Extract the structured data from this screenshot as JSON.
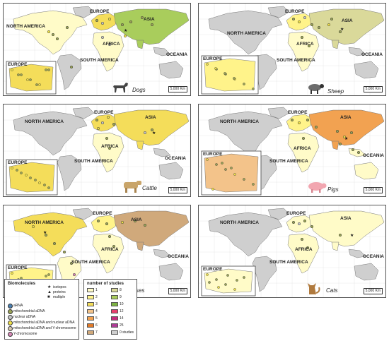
{
  "colors": {
    "ocean": "#ffffff",
    "land_none": "#cfcfcf",
    "c1": "#fffbc8",
    "c2": "#fff38a",
    "c3": "#f4dd5a",
    "c4": "#f3c38a",
    "c5": "#f2a251",
    "c6": "#e07a2a",
    "c7": "#d0a97b",
    "c8": "#dad99a",
    "c9": "#a9cd5c",
    "c10": "#7cb342",
    "c12": "#e8406e",
    "c14": "#c52c7e",
    "c25": "#ad3d96",
    "ancient_rna": "#4a7fb0",
    "mito": "#9aa356",
    "nuclear": "#c6c6c6",
    "mito_nuclear": "#f0e14a",
    "mito_y": "#d7c9b1",
    "ychrom": "#d88ab8"
  },
  "panels": [
    {
      "animal": "Dogs",
      "labels": {
        "north_america": "NORTH AMERICA",
        "europe": "EUROPE",
        "asia": "ASIA",
        "africa": "AFRICA",
        "south_america": "SOUTH AMERICA",
        "oceania": "OCEANIA",
        "inset_europe": "EUROPE"
      },
      "scale": "5,000 Km",
      "icon": "dog-icon"
    },
    {
      "animal": "Sheep",
      "labels": {
        "north_america": "NORTH AMERICA",
        "europe": "EUROPE",
        "asia": "ASIA",
        "africa": "AFRICA",
        "south_america": "SOUTH AMERICA",
        "oceania": "OCEANIA",
        "inset_europe": "EUROPE"
      },
      "scale": "5,000 Km",
      "icon": "sheep-icon"
    },
    {
      "animal": "Cattle",
      "labels": {
        "north_america": "NORTH AMERICA",
        "europe": "EUROPE",
        "asia": "ASIA",
        "africa": "AFRICA",
        "south_america": "SOUTH AMERICA",
        "oceania": "OCEANIA",
        "inset_europe": "EUROPE"
      },
      "scale": "5,000 Km",
      "icon": "cattle-icon"
    },
    {
      "animal": "Pigs",
      "labels": {
        "north_america": "NORTH AMERICA",
        "europe": "EUROPE",
        "asia": "ASIA",
        "africa": "AFRICA",
        "south_america": "SOUTH AMERICA",
        "oceania": "OCEANIA",
        "inset_europe": "EUROPE"
      },
      "scale": "5,000 Km",
      "icon": "pig-icon"
    },
    {
      "animal": "Horses",
      "labels": {
        "north_america": "NORTH AMERICA",
        "europe": "EUROPE",
        "asia": "ASIA",
        "africa": "AFRICA",
        "south_america": "SOUTH AMERICA",
        "oceania": "OCEANIA",
        "inset_europe": "EUROPE"
      },
      "scale": "5,000 Km",
      "icon": "horse-icon"
    },
    {
      "animal": "Cats",
      "labels": {
        "north_america": "NORTH AMERICA",
        "europe": "EUROPE",
        "asia": "ASIA",
        "africa": "AFRICA",
        "south_america": "SOUTH AMERICA",
        "oceania": "OCEANIA",
        "inset_europe": "EUROPE"
      },
      "scale": "5,000 Km",
      "icon": "cat-icon"
    }
  ],
  "legend": {
    "biomolecules_title": "Biomolecules",
    "biomolecules": [
      {
        "label": "aRNA",
        "color": "#4a7fb0"
      },
      {
        "label": "mitochondrial aDNA",
        "color": "#9aa356"
      },
      {
        "label": "nuclear aDNA",
        "color": "#c6c6c6"
      },
      {
        "label": "mitochondrial aDNA and nuclear aDNA",
        "color": "#f0e14a"
      },
      {
        "label": "mitochondrial aDNA and Y-chromosome",
        "color": "#d7c9b1"
      },
      {
        "label": "Y-chromosome",
        "color": "#d88ab8"
      }
    ],
    "markers": [
      {
        "label": "isotopes",
        "symbol": "★"
      },
      {
        "label": "proteins",
        "symbol": "▲"
      },
      {
        "label": "multiple",
        "symbol": "■"
      }
    ],
    "studies_title": "number of studies",
    "studies_left": [
      {
        "label": "1",
        "color": "#fffbc8"
      },
      {
        "label": "2",
        "color": "#fff38a"
      },
      {
        "label": "3",
        "color": "#f4dd5a"
      },
      {
        "label": "4",
        "color": "#f3c38a"
      },
      {
        "label": "5",
        "color": "#f2a251"
      },
      {
        "label": "6",
        "color": "#e07a2a"
      },
      {
        "label": "7",
        "color": "#d0a97b"
      }
    ],
    "studies_right": [
      {
        "label": "8",
        "color": "#dad99a"
      },
      {
        "label": "9",
        "color": "#a9cd5c"
      },
      {
        "label": "10",
        "color": "#7cb342"
      },
      {
        "label": "12",
        "color": "#e8406e"
      },
      {
        "label": "14",
        "color": "#c52c7e"
      },
      {
        "label": "25",
        "color": "#ad3d96"
      },
      {
        "label": "0 studies",
        "color": "#cfcfcf"
      }
    ]
  }
}
